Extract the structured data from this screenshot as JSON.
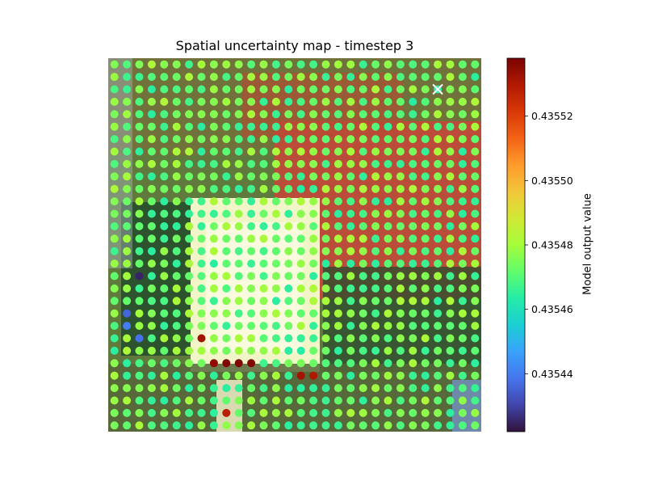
{
  "chart_data": {
    "type": "scatter",
    "title": "Spatial uncertainty map - timestep 3",
    "xlabel": "",
    "ylabel": "",
    "axes_visible": false,
    "background": "aerial photograph tile under the markers",
    "grid": {
      "columns": 30,
      "rows": 30
    },
    "colormap": "turbo",
    "marker_size": "large filled circles",
    "highlight_marker": {
      "symbol": "x",
      "color": "#ffffff",
      "column": 26,
      "row": 2
    },
    "colorbar": {
      "label": "Model output value",
      "vmin": 0.435422,
      "vmax": 0.435538,
      "ticks": [
        0.43544,
        0.43546,
        0.43548,
        0.4355,
        0.43552
      ],
      "tick_labels": [
        "0.43544",
        "0.43546",
        "0.43548",
        "0.43550",
        "0.43552"
      ]
    },
    "value_field": {
      "description": "value per grid point; estimated from marker colors",
      "base": 0.435473,
      "noise_amplitude": 9e-06,
      "low_points": [
        [
          2,
          17,
          0.435425
        ],
        [
          1,
          20,
          0.435436
        ],
        [
          2,
          22,
          0.435438
        ],
        [
          1,
          21,
          0.43544
        ]
      ],
      "high_points": [
        [
          9,
          24,
          0.435537
        ],
        [
          10,
          24,
          0.435537
        ],
        [
          11,
          24,
          0.435537
        ],
        [
          8,
          24,
          0.435535
        ],
        [
          7,
          22,
          0.435532
        ],
        [
          15,
          25,
          0.435532
        ],
        [
          16,
          25,
          0.43553
        ],
        [
          9,
          28,
          0.435528
        ]
      ]
    }
  },
  "colors": {
    "cmap_stops": [
      "#30123b",
      "#4145ab",
      "#4675ed",
      "#39a2fc",
      "#1bcfd4",
      "#24eca6",
      "#61fc6c",
      "#a4fc3b",
      "#d1e834",
      "#f3c63a",
      "#fe9b2d",
      "#f36315",
      "#d93806",
      "#b11901",
      "#7a0403"
    ]
  }
}
